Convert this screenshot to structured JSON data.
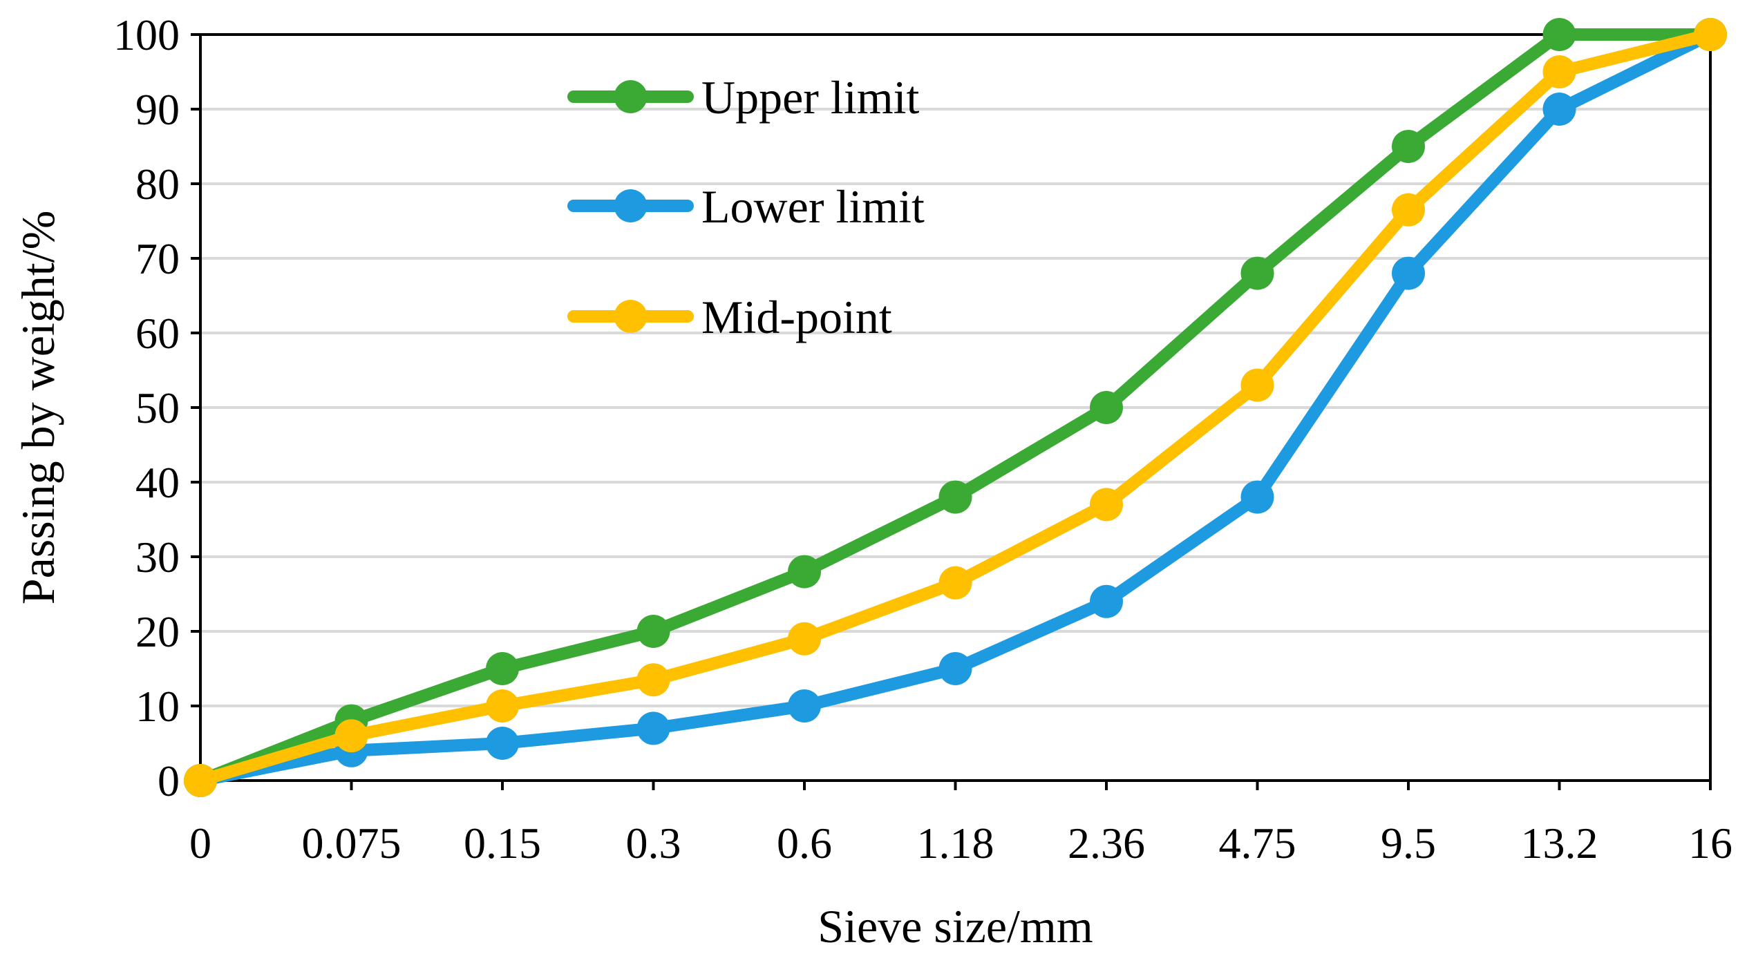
{
  "chart_data": {
    "type": "line",
    "title": "",
    "xlabel": "Sieve size/mm",
    "ylabel": "Passing by weight/%",
    "categories": [
      "0",
      "0.075",
      "0.15",
      "0.3",
      "0.6",
      "1.18",
      "2.36",
      "4.75",
      "9.5",
      "13.2",
      "16"
    ],
    "ylim": [
      0,
      100
    ],
    "yticks": [
      "0",
      "10",
      "20",
      "30",
      "40",
      "50",
      "60",
      "70",
      "80",
      "90",
      "100"
    ],
    "grid": true,
    "legend_position": "top-center",
    "series": [
      {
        "name": "Upper limit",
        "color": "#3aaa35",
        "values": [
          0,
          8,
          15,
          20,
          28,
          38,
          50,
          68,
          85,
          100,
          100
        ]
      },
      {
        "name": "Lower limit",
        "color": "#1e9be0",
        "values": [
          0,
          4,
          5,
          7,
          10,
          15,
          24,
          38,
          68,
          90,
          100
        ]
      },
      {
        "name": "Mid-point",
        "color": "#ffc000",
        "values": [
          0,
          6,
          10,
          13.5,
          19,
          26.5,
          37,
          53,
          76.5,
          95,
          100
        ]
      }
    ]
  }
}
